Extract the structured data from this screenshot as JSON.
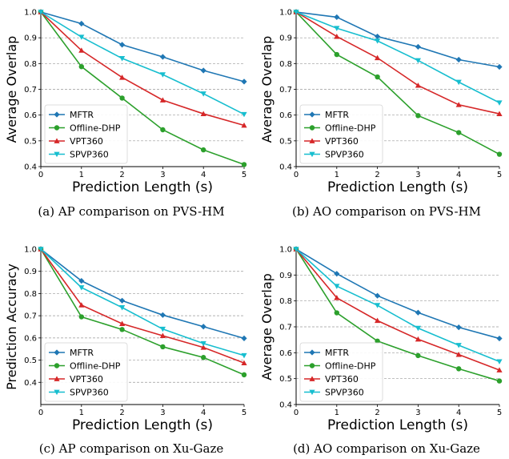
{
  "chart_data": [
    {
      "type": "line",
      "caption": "(a)  AP comparison on PVS-HM",
      "xlabel": "Prediction Length (s)",
      "ylabel": "Average Overlap",
      "x": [
        0,
        1,
        2,
        3,
        4,
        5
      ],
      "xticks": [
        "0",
        "1",
        "2",
        "3",
        "4",
        "5"
      ],
      "xlim": [
        0,
        5
      ],
      "ylim": [
        0.4,
        1.0
      ],
      "yticks": [
        "0.4",
        "0.5",
        "0.6",
        "0.7",
        "0.8",
        "0.9",
        "1.0"
      ],
      "grid": "horizontal",
      "legend_position": "lower-left",
      "series": [
        {
          "name": "MFTR",
          "color": "#1f77b4",
          "marker": "diamond",
          "values": [
            1.0,
            0.955,
            0.873,
            0.826,
            0.773,
            0.73
          ]
        },
        {
          "name": "Offline-DHP",
          "color": "#2ca02c",
          "marker": "circle",
          "values": [
            1.0,
            0.788,
            0.666,
            0.543,
            0.465,
            0.408
          ]
        },
        {
          "name": "VPT360",
          "color": "#d62728",
          "marker": "triangle-up",
          "values": [
            1.0,
            0.851,
            0.746,
            0.658,
            0.605,
            0.56
          ]
        },
        {
          "name": "SPVP360",
          "color": "#17becf",
          "marker": "triangle-down",
          "values": [
            1.0,
            0.903,
            0.82,
            0.757,
            0.683,
            0.603
          ]
        }
      ]
    },
    {
      "type": "line",
      "caption": "(b)  AO comparison on PVS-HM",
      "xlabel": "Prediction Length (s)",
      "ylabel": "Average Overlap",
      "x": [
        0,
        1,
        2,
        3,
        4,
        5
      ],
      "xticks": [
        "0",
        "1",
        "2",
        "3",
        "4",
        "5"
      ],
      "xlim": [
        0,
        5
      ],
      "ylim": [
        0.4,
        1.0
      ],
      "yticks": [
        "0.4",
        "0.5",
        "0.6",
        "0.7",
        "0.8",
        "0.9",
        "1.0"
      ],
      "grid": "horizontal",
      "legend_position": "lower-left",
      "series": [
        {
          "name": "MFTR",
          "color": "#1f77b4",
          "marker": "diamond",
          "values": [
            1.0,
            0.98,
            0.905,
            0.865,
            0.815,
            0.787
          ]
        },
        {
          "name": "Offline-DHP",
          "color": "#2ca02c",
          "marker": "circle",
          "values": [
            1.0,
            0.835,
            0.748,
            0.598,
            0.532,
            0.448
          ]
        },
        {
          "name": "VPT360",
          "color": "#d62728",
          "marker": "triangle-up",
          "values": [
            1.0,
            0.905,
            0.822,
            0.715,
            0.64,
            0.605
          ]
        },
        {
          "name": "SPVP360",
          "color": "#17becf",
          "marker": "triangle-down",
          "values": [
            1.0,
            0.937,
            0.888,
            0.812,
            0.728,
            0.648
          ]
        }
      ]
    },
    {
      "type": "line",
      "caption": "(c)  AP comparison on Xu-Gaze",
      "xlabel": "Prediction Length (s)",
      "ylabel": "Prediction Accuracy",
      "x": [
        0,
        1,
        2,
        3,
        4,
        5
      ],
      "xticks": [
        "0",
        "1",
        "2",
        "3",
        "4",
        "5"
      ],
      "xlim": [
        0,
        5
      ],
      "ylim": [
        0.3,
        1.0
      ],
      "yticks": [
        "0.4",
        "0.5",
        "0.6",
        "0.7",
        "0.8",
        "0.9",
        "1.0"
      ],
      "grid": "horizontal",
      "legend_position": "lower-left",
      "series": [
        {
          "name": "MFTR",
          "color": "#1f77b4",
          "marker": "diamond",
          "values": [
            1.0,
            0.857,
            0.768,
            0.703,
            0.651,
            0.598
          ]
        },
        {
          "name": "Offline-DHP",
          "color": "#2ca02c",
          "marker": "circle",
          "values": [
            1.0,
            0.695,
            0.638,
            0.56,
            0.512,
            0.434
          ]
        },
        {
          "name": "VPT360",
          "color": "#d62728",
          "marker": "triangle-up",
          "values": [
            1.0,
            0.748,
            0.664,
            0.61,
            0.557,
            0.487
          ]
        },
        {
          "name": "SPVP360",
          "color": "#17becf",
          "marker": "triangle-down",
          "values": [
            1.0,
            0.827,
            0.737,
            0.64,
            0.575,
            0.521
          ]
        }
      ]
    },
    {
      "type": "line",
      "caption": "(d)  AO comparison on Xu-Gaze",
      "xlabel": "Prediction Length (s)",
      "ylabel": "Average Overlap",
      "x": [
        0,
        1,
        2,
        3,
        4,
        5
      ],
      "xticks": [
        "0",
        "1",
        "2",
        "3",
        "4",
        "5"
      ],
      "xlim": [
        0,
        5
      ],
      "ylim": [
        0.4,
        1.0
      ],
      "yticks": [
        "0.4",
        "0.5",
        "0.6",
        "0.7",
        "0.8",
        "0.9",
        "1.0"
      ],
      "grid": "horizontal",
      "legend_position": "lower-left",
      "series": [
        {
          "name": "MFTR",
          "color": "#1f77b4",
          "marker": "diamond",
          "values": [
            1.0,
            0.905,
            0.82,
            0.755,
            0.698,
            0.655
          ]
        },
        {
          "name": "Offline-DHP",
          "color": "#2ca02c",
          "marker": "circle",
          "values": [
            1.0,
            0.754,
            0.645,
            0.589,
            0.538,
            0.491
          ]
        },
        {
          "name": "VPT360",
          "color": "#d62728",
          "marker": "triangle-up",
          "values": [
            1.0,
            0.812,
            0.724,
            0.652,
            0.593,
            0.533
          ]
        },
        {
          "name": "SPVP360",
          "color": "#17becf",
          "marker": "triangle-down",
          "values": [
            1.0,
            0.857,
            0.783,
            0.695,
            0.629,
            0.566
          ]
        }
      ]
    }
  ]
}
